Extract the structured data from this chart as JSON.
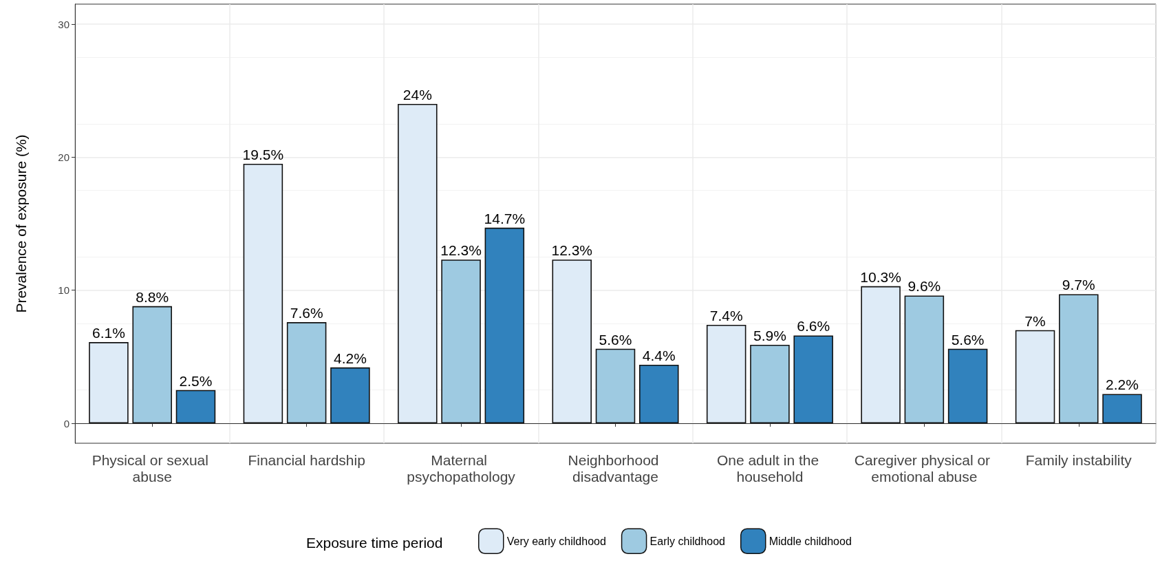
{
  "chart_data": {
    "type": "bar",
    "ylabel": "Prevalence of exposure (%)",
    "legend_title": "Exposure time period",
    "categories": [
      "Physical or sexual abuse",
      "Financial hardship",
      "Maternal psychopathology",
      "Neighborhood disadvantage",
      "One adult in the household",
      "Caregiver physical or emotional abuse",
      "Family instability"
    ],
    "series": [
      {
        "name": "Very early childhood",
        "color": "#deebf7",
        "values": [
          6.1,
          19.5,
          24,
          12.3,
          7.4,
          10.3,
          7
        ],
        "value_labels": [
          "6.1%",
          "19.5%",
          "24%",
          "12.3%",
          "7.4%",
          "10.3%",
          "7%"
        ]
      },
      {
        "name": "Early childhood",
        "color": "#9ecae1",
        "values": [
          8.8,
          7.6,
          12.3,
          5.6,
          5.9,
          9.6,
          9.7
        ],
        "value_labels": [
          "8.8%",
          "7.6%",
          "12.3%",
          "5.6%",
          "5.9%",
          "9.6%",
          "9.7%"
        ]
      },
      {
        "name": "Middle childhood",
        "color": "#3182bd",
        "values": [
          2.5,
          4.2,
          14.7,
          4.4,
          6.6,
          5.6,
          2.2
        ],
        "value_labels": [
          "2.5%",
          "4.2%",
          "14.7%",
          "4.4%",
          "6.6%",
          "5.6%",
          "2.2%"
        ]
      }
    ],
    "ylim": [
      -1.5,
      31.5
    ],
    "yticks": [
      0,
      10,
      20,
      30
    ],
    "grid": true,
    "legend": "bottom"
  }
}
